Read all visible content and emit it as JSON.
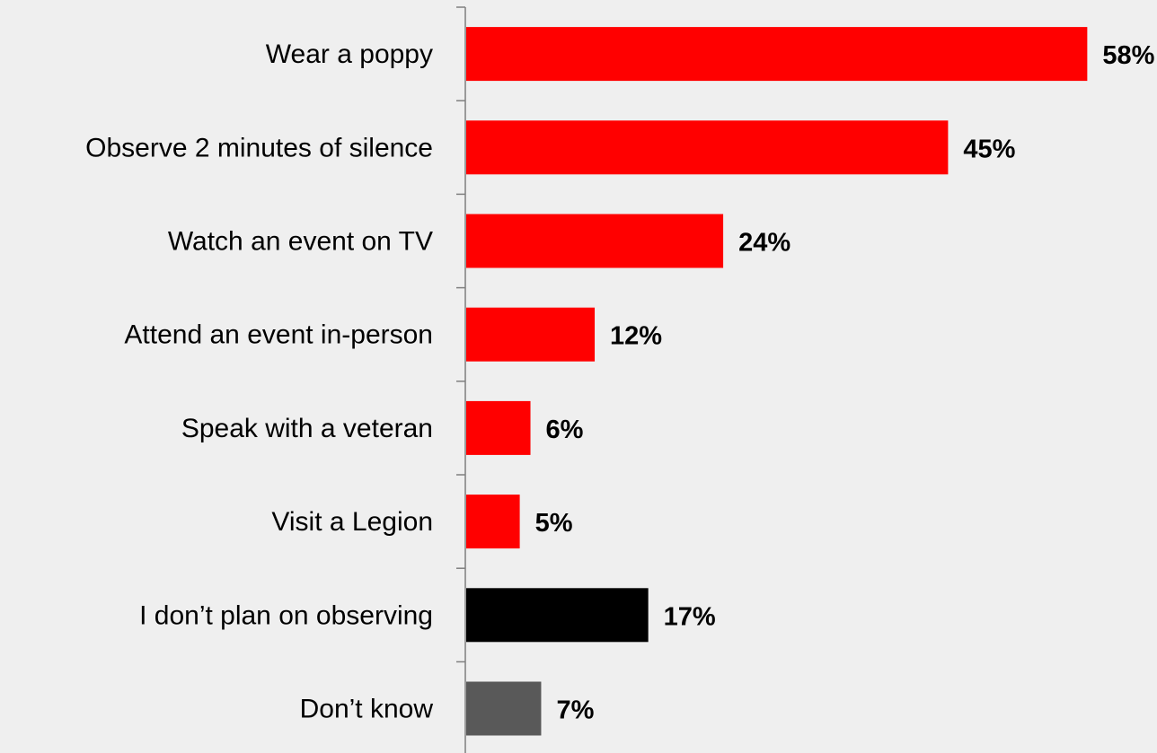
{
  "chart_data": {
    "type": "bar",
    "orientation": "horizontal",
    "title": "",
    "xlabel": "",
    "ylabel": "",
    "categories": [
      "Wear a poppy",
      "Observe 2 minutes of silence",
      "Watch an event on TV",
      "Attend an event in-person",
      "Speak with a veteran",
      "Visit a Legion",
      "I don’t plan on observing",
      "Don’t know"
    ],
    "values": [
      58,
      45,
      24,
      12,
      6,
      5,
      17,
      7
    ],
    "value_labels": [
      "58%",
      "45%",
      "24%",
      "12%",
      "6%",
      "5%",
      "17%",
      "7%"
    ],
    "bar_colors": [
      "#ff0000",
      "#ff0000",
      "#ff0000",
      "#ff0000",
      "#ff0000",
      "#ff0000",
      "#000000",
      "#595959"
    ],
    "xlim": [
      0,
      60
    ],
    "grid": false,
    "legend": "none"
  },
  "colors": {
    "background": "#efefef",
    "axis": "#7f7f7f"
  }
}
